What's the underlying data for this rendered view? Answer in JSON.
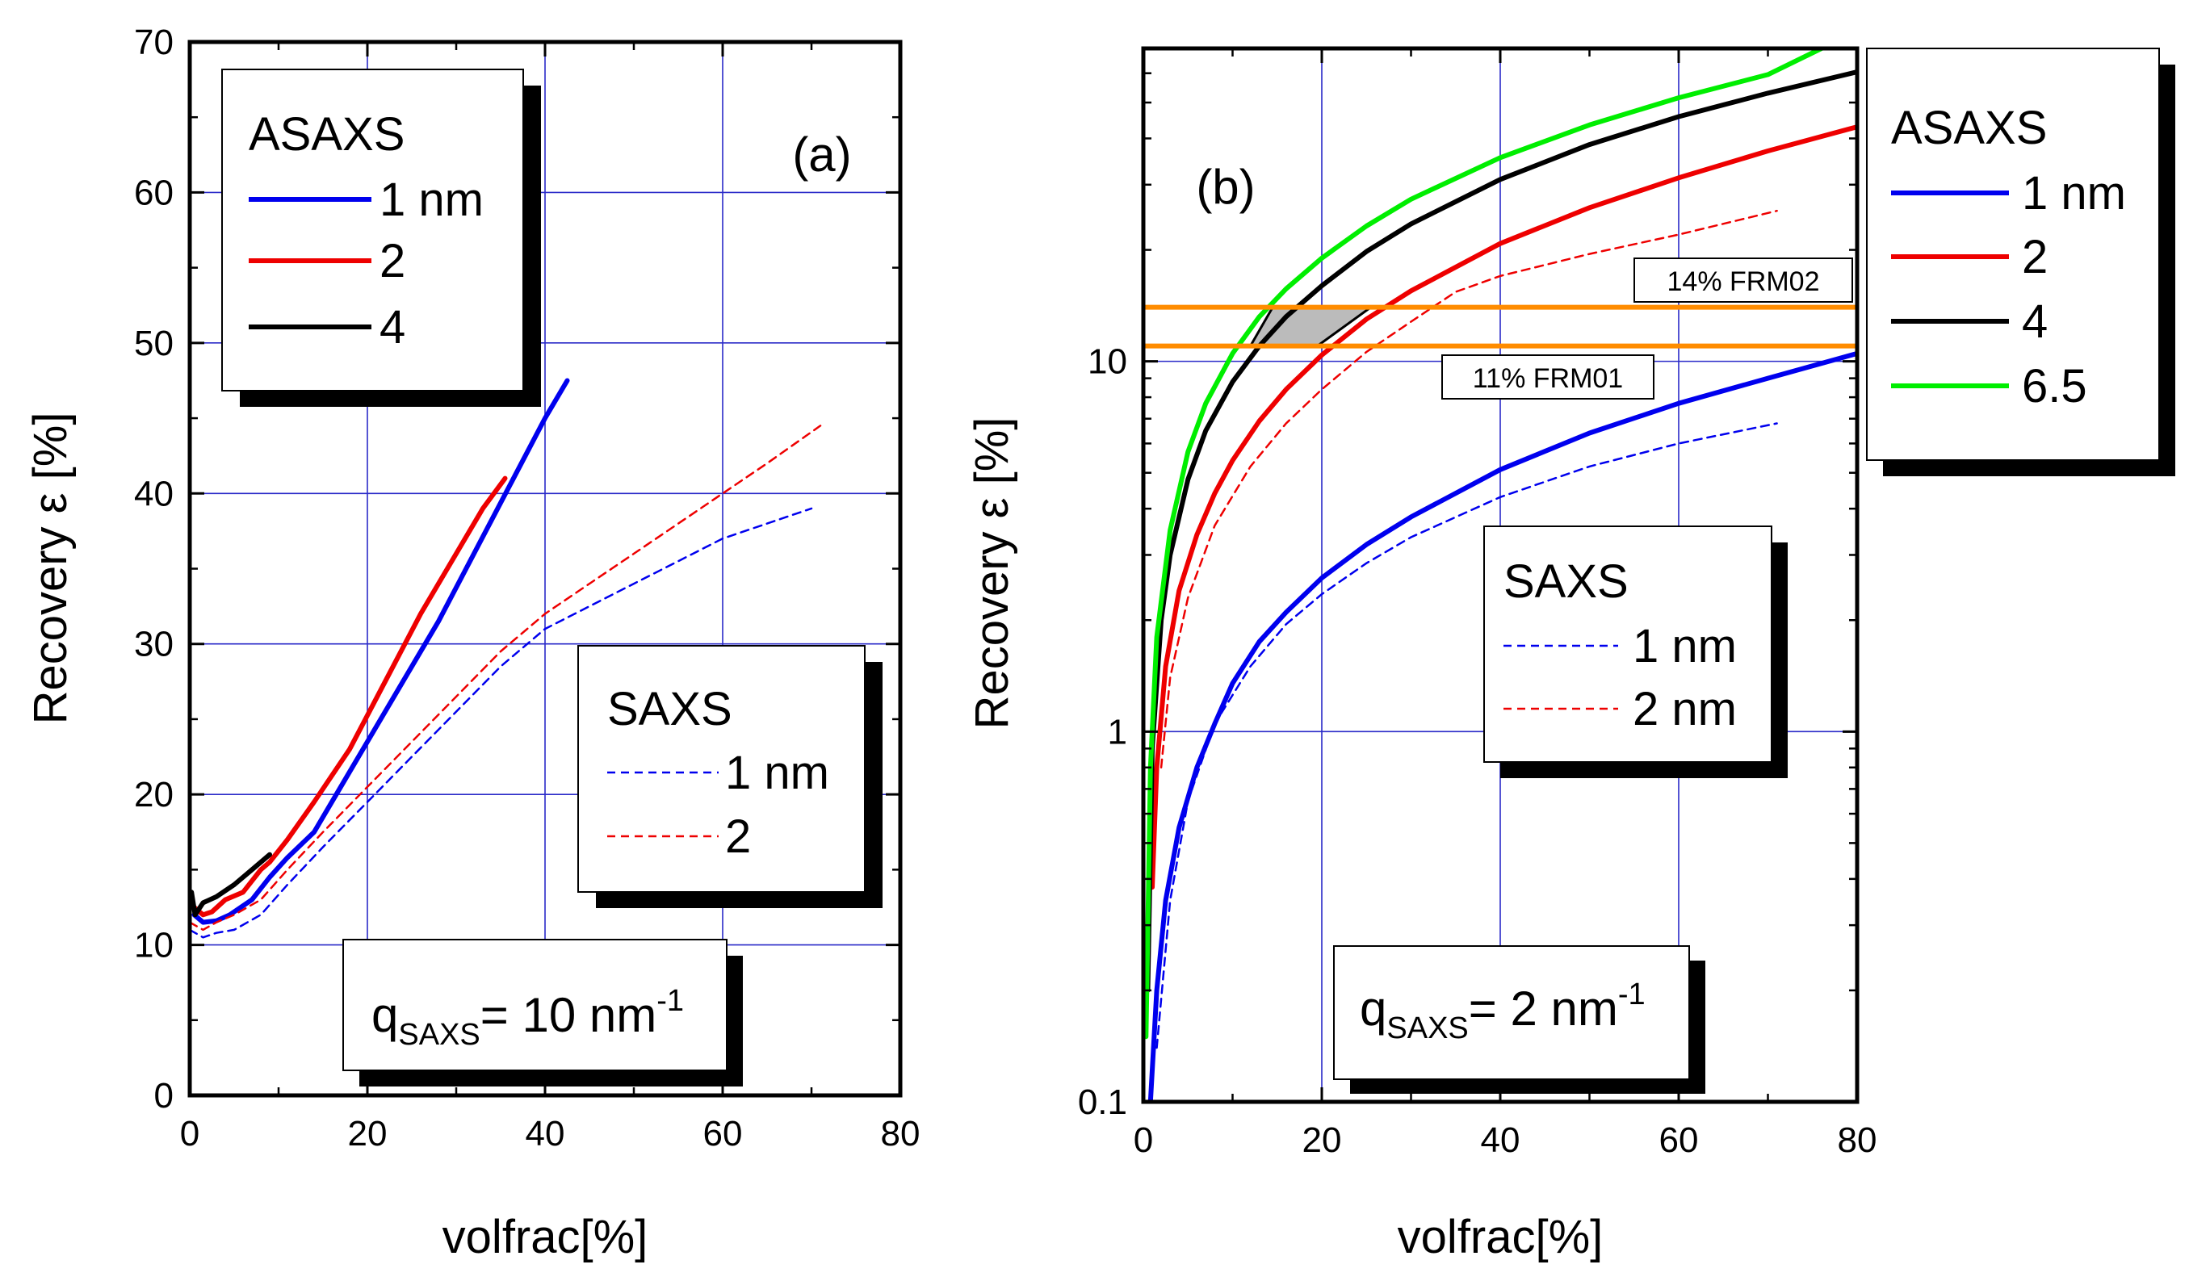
{
  "chart_data": [
    {
      "panel": "(a)",
      "type": "line",
      "xlabel": "volfrac[%]",
      "ylabel": "Recovery ε [%]",
      "xlim": [
        0,
        80
      ],
      "ylim": [
        0,
        70
      ],
      "yscale": "linear",
      "xticks": [
        0,
        20,
        40,
        60,
        80
      ],
      "yticks": [
        0,
        10,
        20,
        30,
        40,
        50,
        60,
        70
      ],
      "grid": true,
      "legends": [
        {
          "title": "ASAXS",
          "entries": [
            "1 nm",
            "2",
            "4"
          ],
          "position": "top-left"
        },
        {
          "title": "SAXS",
          "entries": [
            "1 nm",
            "2"
          ],
          "position": "center-right"
        }
      ],
      "annotation": {
        "main": "q",
        "sub": "SAXS",
        "value": "= 10 nm",
        "sup": "-1"
      },
      "series": [
        {
          "name": "ASAXS 1 nm",
          "color": "#0000ee",
          "style": "solid",
          "x": [
            0.5,
            1.5,
            3,
            4.5,
            7,
            9,
            11,
            14,
            17,
            20,
            24,
            28,
            32,
            36,
            40,
            42.5
          ],
          "y": [
            12,
            11.5,
            11.6,
            12,
            13,
            14.5,
            15.8,
            17.5,
            20.5,
            23.5,
            27.5,
            31.5,
            36,
            40.5,
            45,
            47.5
          ]
        },
        {
          "name": "ASAXS 2",
          "color": "#ee0000",
          "style": "solid",
          "x": [
            0.5,
            1.5,
            2.5,
            4,
            6,
            8,
            9,
            11,
            14,
            18,
            22,
            26,
            30,
            33,
            35.5
          ],
          "y": [
            12.5,
            12,
            12.2,
            13,
            13.5,
            15,
            15.5,
            17,
            19.5,
            23,
            27.5,
            32,
            36,
            39,
            41
          ]
        },
        {
          "name": "ASAXS 4",
          "color": "#000000",
          "style": "solid",
          "x": [
            0.2,
            0.6,
            1.5,
            3,
            5,
            7,
            9
          ],
          "y": [
            13.5,
            12,
            12.8,
            13.2,
            14,
            15,
            16
          ]
        },
        {
          "name": "SAXS 1 nm",
          "color": "#0000ee",
          "style": "dashed",
          "x": [
            0,
            1.5,
            3,
            5,
            8,
            11,
            15,
            20,
            25,
            30,
            35,
            40,
            45,
            50,
            55,
            60,
            65,
            70
          ],
          "y": [
            11,
            10.5,
            10.8,
            11,
            12,
            14,
            16.5,
            19.5,
            22.5,
            25.5,
            28.5,
            31,
            32.5,
            34,
            35.5,
            37,
            38,
            39
          ]
        },
        {
          "name": "SAXS 2",
          "color": "#ee0000",
          "style": "dashed",
          "x": [
            0,
            1.5,
            3,
            5,
            8,
            11,
            15,
            20,
            25,
            30,
            35,
            40,
            45,
            50,
            55,
            60,
            65,
            71
          ],
          "y": [
            11.5,
            11,
            11.5,
            12,
            13,
            15,
            17.5,
            20.5,
            23.5,
            26.5,
            29.5,
            32,
            34,
            36,
            38,
            40,
            42,
            44.5
          ]
        }
      ]
    },
    {
      "panel": "(b)",
      "type": "line",
      "xlabel": "volfrac[%]",
      "ylabel": "Recovery ε [%]",
      "xlim": [
        0,
        80
      ],
      "ylim": [
        0.1,
        70
      ],
      "yscale": "log",
      "xticks": [
        0,
        20,
        40,
        60,
        80
      ],
      "yticks": [
        0.1,
        1,
        10
      ],
      "ytick_labels": [
        "0.1",
        "1",
        "10"
      ],
      "grid": true,
      "legends": [
        {
          "title": "ASAXS",
          "entries": [
            "1 nm",
            "2",
            "4",
            "6.5"
          ],
          "position": "right"
        },
        {
          "title": "SAXS",
          "entries": [
            "1 nm",
            "2 nm"
          ],
          "position": "center"
        }
      ],
      "annotation": {
        "main": "q",
        "sub": "SAXS",
        "value": "= 2 nm",
        "sup": "-1"
      },
      "reference_lines": [
        {
          "label": "14% FRM02",
          "y": 14,
          "color": "#ff8c00"
        },
        {
          "label": "11% FRM01",
          "y": 11,
          "color": "#ff8c00"
        }
      ],
      "shaded_region": {
        "color": "#bbbbbb",
        "vertices": [
          [
            12,
            11
          ],
          [
            14.5,
            14
          ],
          [
            25.5,
            14
          ],
          [
            19.5,
            11
          ]
        ]
      },
      "series": [
        {
          "name": "ASAXS 1 nm",
          "color": "#0000ee",
          "style": "solid",
          "x": [
            0.8,
            1.5,
            2.5,
            4,
            6,
            8,
            10,
            13,
            16,
            20,
            25,
            30,
            40,
            50,
            60,
            70,
            80
          ],
          "y": [
            0.1,
            0.2,
            0.35,
            0.55,
            0.8,
            1.05,
            1.35,
            1.75,
            2.1,
            2.6,
            3.2,
            3.8,
            5.1,
            6.4,
            7.7,
            9,
            10.5
          ]
        },
        {
          "name": "ASAXS 2",
          "color": "#ee0000",
          "style": "solid",
          "x": [
            1,
            1.5,
            2.5,
            4,
            6,
            8,
            10,
            13,
            16,
            20,
            25,
            30,
            40,
            50,
            60,
            70,
            80
          ],
          "y": [
            0.38,
            0.8,
            1.5,
            2.4,
            3.4,
            4.4,
            5.4,
            6.9,
            8.4,
            10.4,
            13,
            15.5,
            20.8,
            26,
            31.3,
            37,
            43
          ]
        },
        {
          "name": "ASAXS 4",
          "color": "#000000",
          "style": "solid",
          "x": [
            0.5,
            1,
            2,
            3,
            5,
            7,
            10,
            13,
            16,
            20,
            25,
            30,
            40,
            50,
            60,
            70,
            80
          ],
          "y": [
            0.2,
            0.9,
            2,
            3,
            4.8,
            6.5,
            8.8,
            11,
            13.2,
            16,
            19.8,
            23.5,
            31,
            38.5,
            45.8,
            53,
            60.5
          ]
        },
        {
          "name": "ASAXS 6.5",
          "color": "#00ee00",
          "style": "solid",
          "x": [
            0.3,
            0.8,
            1.5,
            3,
            5,
            7,
            10,
            13,
            16,
            20,
            25,
            30,
            40,
            50,
            60,
            70,
            76
          ],
          "y": [
            0.15,
            0.8,
            1.8,
            3.5,
            5.7,
            7.7,
            10.5,
            13.2,
            15.7,
            19,
            23.2,
            27.4,
            35.5,
            43.5,
            51.5,
            59.5,
            70
          ]
        },
        {
          "name": "SAXS 1 nm",
          "color": "#0000ee",
          "style": "dashed",
          "x": [
            1.5,
            3,
            5,
            8,
            12,
            16,
            20,
            25,
            30,
            40,
            50,
            60,
            71
          ],
          "y": [
            0.14,
            0.35,
            0.65,
            1.05,
            1.5,
            1.95,
            2.35,
            2.85,
            3.35,
            4.3,
            5.2,
            6,
            6.8
          ]
        },
        {
          "name": "SAXS 2 nm",
          "color": "#ee0000",
          "style": "dashed",
          "x": [
            2,
            3,
            5,
            8,
            12,
            16,
            20,
            25,
            30,
            35,
            40,
            50,
            60,
            71
          ],
          "y": [
            0.8,
            1.4,
            2.3,
            3.6,
            5.2,
            6.8,
            8.4,
            10.6,
            12.8,
            15.4,
            17,
            19.5,
            22,
            25.5
          ]
        }
      ]
    }
  ]
}
